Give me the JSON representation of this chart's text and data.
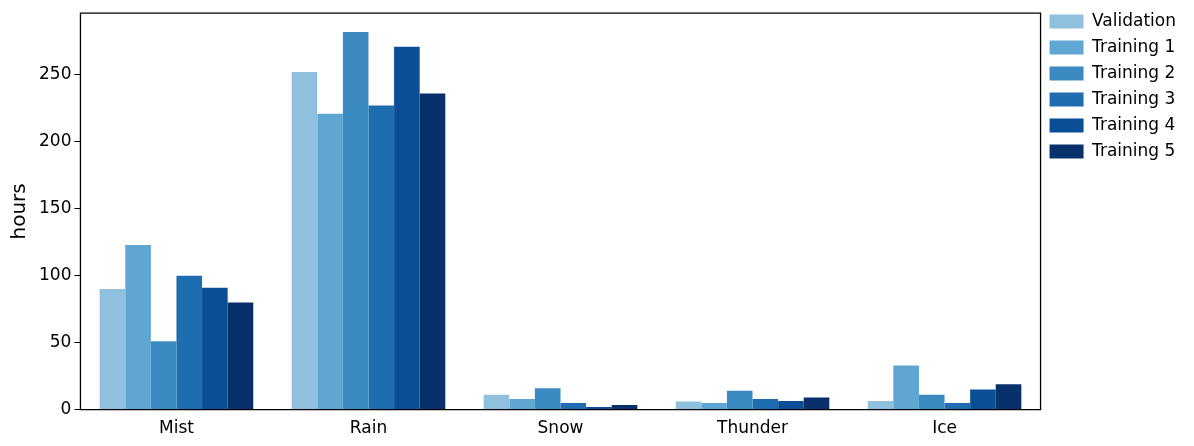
{
  "chart_data": {
    "type": "bar",
    "ylabel": "hours",
    "categories": [
      "Mist",
      "Rain",
      "Snow",
      "Thunder",
      "Ice"
    ],
    "series": [
      {
        "name": "Validation",
        "color": "#8fc1de",
        "values": [
          90,
          252,
          11,
          6,
          6.5
        ]
      },
      {
        "name": "Training 1",
        "color": "#5fa6d3",
        "values": [
          123,
          221,
          8,
          5,
          33
        ]
      },
      {
        "name": "Training 2",
        "color": "#3b8bc2",
        "values": [
          51,
          282,
          16,
          14,
          11
        ]
      },
      {
        "name": "Training 3",
        "color": "#1f6db1",
        "values": [
          100,
          227,
          5,
          8,
          5
        ]
      },
      {
        "name": "Training 4",
        "color": "#0a4f96",
        "values": [
          91,
          271,
          2,
          6.5,
          15
        ]
      },
      {
        "name": "Training 5",
        "color": "#08306b",
        "values": [
          80,
          236,
          3.5,
          9,
          19
        ]
      }
    ],
    "ylim": [
      0,
      296
    ],
    "yticks": [
      0,
      50,
      100,
      150,
      200,
      250
    ],
    "grid": false,
    "legend": "top right"
  }
}
